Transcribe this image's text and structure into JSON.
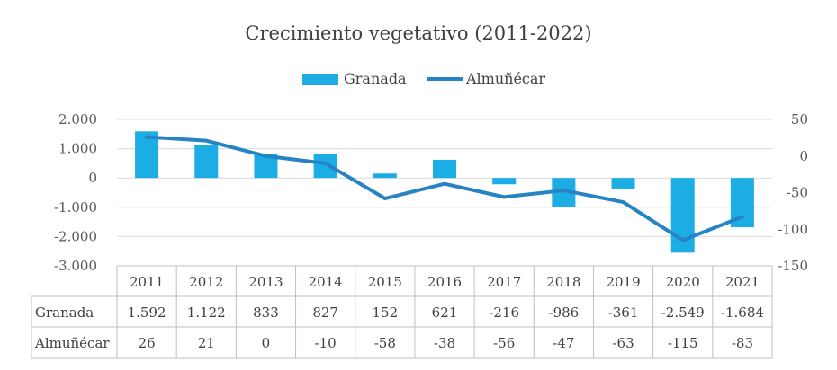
{
  "chart_data": {
    "type": "bar+line",
    "title": "Crecimiento vegetativo (2011-2022)",
    "categories": [
      "2011",
      "2012",
      "2013",
      "2014",
      "2015",
      "2016",
      "2017",
      "2018",
      "2019",
      "2020",
      "2021"
    ],
    "left_axis": {
      "ticks": [
        "2.000",
        "1.000",
        "0",
        "-1.000",
        "-2.000",
        "-3.000"
      ],
      "range": [
        -3000,
        2000
      ]
    },
    "right_axis": {
      "ticks": [
        "50",
        "0",
        "-50",
        "-100",
        "-150"
      ],
      "range": [
        -150,
        50
      ]
    },
    "legend_position": "top-center",
    "series": [
      {
        "name": "Granada",
        "type": "bar",
        "axis": "left",
        "color": "#1cade4",
        "values": [
          1592,
          1122,
          833,
          827,
          152,
          621,
          -216,
          -986,
          -361,
          -2549,
          -1684
        ],
        "value_labels": [
          "1.592",
          "1.122",
          "833",
          "827",
          "152",
          "621",
          "-216",
          "-986",
          "-361",
          "-2.549",
          "-1.684"
        ]
      },
      {
        "name": "Almuñécar",
        "type": "line",
        "axis": "right",
        "color": "#2683c6",
        "values": [
          26,
          21,
          0,
          -10,
          -58,
          -38,
          -56,
          -47,
          -63,
          -115,
          -83
        ],
        "value_labels": [
          "26",
          "21",
          "0",
          "-10",
          "-58",
          "-38",
          "-56",
          "-47",
          "-63",
          "-115",
          "-83"
        ]
      }
    ],
    "table": {
      "show": true,
      "row_labels": [
        "Granada",
        "Almuñécar"
      ]
    }
  }
}
